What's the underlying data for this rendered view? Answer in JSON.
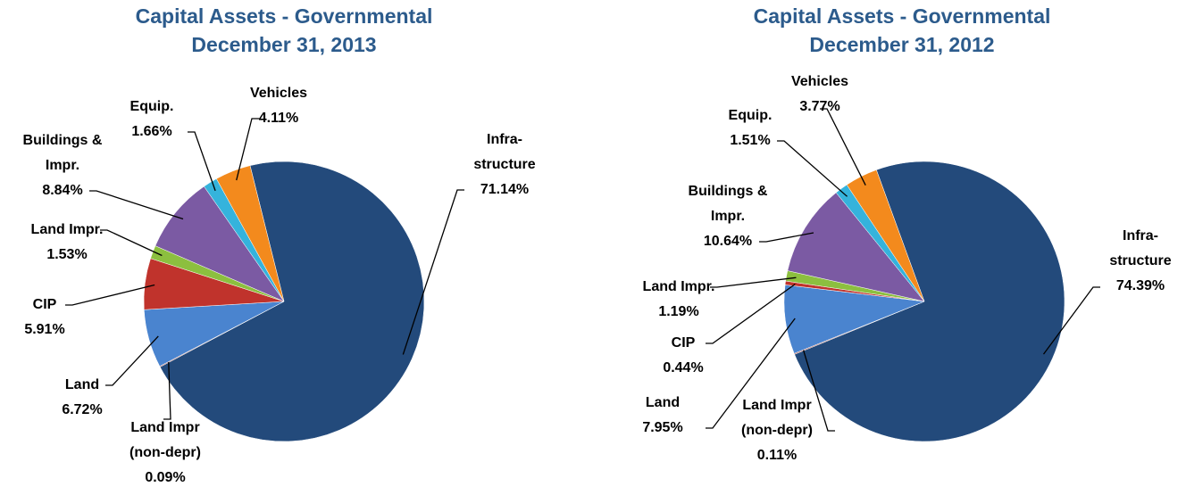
{
  "chart_data": [
    {
      "type": "pie",
      "title": "Capital Assets - Governmental",
      "subtitle": "December 31, 2013",
      "categories": [
        "Infra-\nstructure",
        "Land Impr\n(non-depr)",
        "Land",
        "CIP",
        "Land Impr.",
        "Buildings &\nImpr.",
        "Equip.",
        "Vehicles"
      ],
      "values": [
        71.14,
        0.09,
        6.72,
        5.91,
        1.53,
        8.84,
        1.66,
        4.11
      ],
      "value_labels": [
        "71.14%",
        "0.09%",
        "6.72%",
        "5.91%",
        "1.53%",
        "8.84%",
        "1.66%",
        "4.11%"
      ],
      "colors": [
        "#234a7b",
        "#9c3a36",
        "#4a84cf",
        "#c0332c",
        "#8cbf3f",
        "#7b5aa3",
        "#35b3dc",
        "#f38a1d"
      ]
    },
    {
      "type": "pie",
      "title": "Capital Assets - Governmental",
      "subtitle": "December 31, 2012",
      "categories": [
        "Infra-\nstructure",
        "Land Impr\n(non-depr)",
        "Land",
        "CIP",
        "Land Impr.",
        "Buildings &\nImpr.",
        "Equip.",
        "Vehicles"
      ],
      "values": [
        74.39,
        0.11,
        7.95,
        0.44,
        1.19,
        10.64,
        1.51,
        3.77
      ],
      "value_labels": [
        "74.39%",
        "0.11%",
        "7.95%",
        "0.44%",
        "1.19%",
        "10.64%",
        "1.51%",
        "3.77%"
      ],
      "colors": [
        "#234a7b",
        "#9c3a36",
        "#4a84cf",
        "#c0332c",
        "#8cbf3f",
        "#7b5aa3",
        "#35b3dc",
        "#f38a1d"
      ]
    }
  ]
}
